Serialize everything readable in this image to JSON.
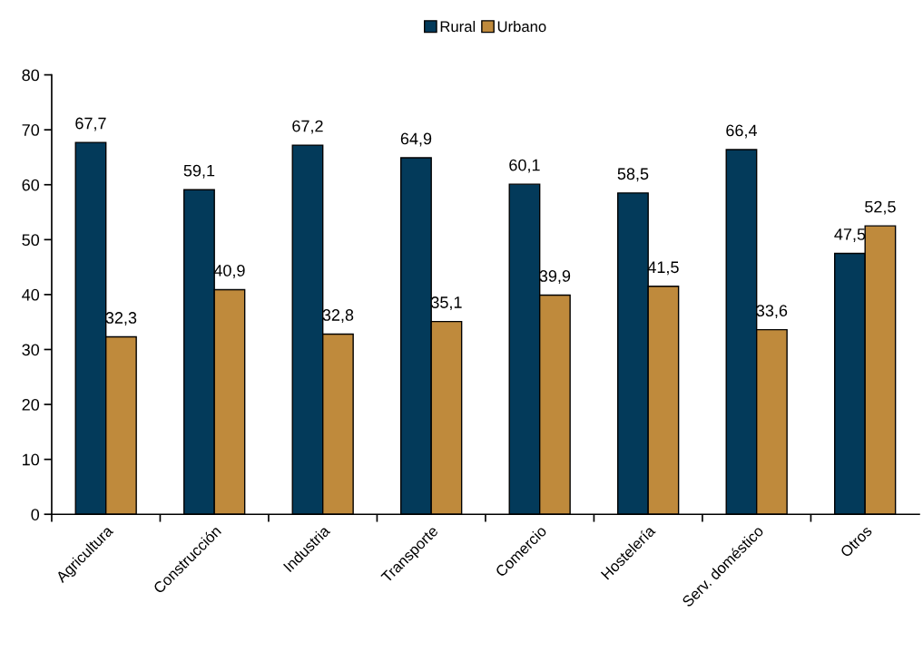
{
  "chart_data": {
    "type": "bar",
    "categories": [
      "Agricultura",
      "Construcción",
      "Industria",
      "Transporte",
      "Comercio",
      "Hostelería",
      "Serv. doméstico",
      "Otros"
    ],
    "series": [
      {
        "name": "Rural",
        "color": "#033a5a",
        "values": [
          67.7,
          59.1,
          67.2,
          64.9,
          60.1,
          58.5,
          66.4,
          47.5
        ],
        "value_labels": [
          "67,7",
          "59,1",
          "67,2",
          "64,9",
          "60,1",
          "58,5",
          "66,4",
          "47,5"
        ]
      },
      {
        "name": "Urbano",
        "color": "#bf8a3c",
        "values": [
          32.3,
          40.9,
          32.8,
          35.1,
          39.9,
          41.5,
          33.6,
          52.5
        ],
        "value_labels": [
          "32,3",
          "40,9",
          "32,8",
          "35,1",
          "39,9",
          "41,5",
          "33,6",
          "52,5"
        ]
      }
    ],
    "ylim": [
      0,
      80
    ],
    "yticks": [
      0,
      10,
      20,
      30,
      40,
      50,
      60,
      70,
      80
    ],
    "legend": "top",
    "grid": false
  }
}
